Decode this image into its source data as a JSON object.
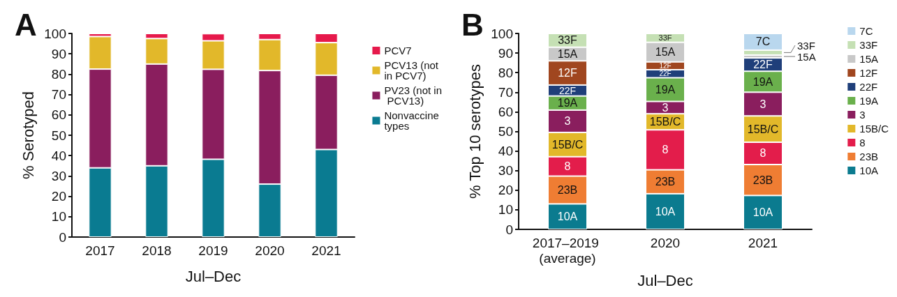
{
  "chart_data": [
    {
      "type": "bar",
      "title": "A",
      "stacked": true,
      "categories": [
        "2017",
        "2018",
        "2019",
        "2020",
        "2021"
      ],
      "xlabel": "Jul–Dec",
      "ylabel": "% Serotyped",
      "ylim": [
        0,
        100
      ],
      "yticks": [
        0,
        10,
        20,
        30,
        40,
        50,
        60,
        70,
        80,
        90,
        100
      ],
      "grid": false,
      "legend": "right",
      "series": [
        {
          "name": "Nonvaccine types",
          "color": "#0a7b91",
          "values": [
            34,
            35,
            38.2,
            26,
            43
          ]
        },
        {
          "name": "PV23 (not in PCV13)",
          "color": "#8a1e5e",
          "values": [
            48.5,
            50,
            44.2,
            55.8,
            36.5
          ]
        },
        {
          "name": "PCV13 (not in PCV7)",
          "color": "#e2b82a",
          "values": [
            16,
            12.5,
            14,
            15.2,
            16
          ]
        },
        {
          "name": "PCV7",
          "color": "#e6194b",
          "values": [
            1.5,
            2.5,
            3.5,
            3,
            4.5
          ]
        }
      ]
    },
    {
      "type": "bar",
      "title": "B",
      "stacked": true,
      "categories": [
        "2017–2019 (average)",
        "2020",
        "2021"
      ],
      "xlabel": "Jul–Dec",
      "ylabel": "% Top 10 serotypes",
      "ylim": [
        0,
        100
      ],
      "yticks": [
        0,
        10,
        20,
        30,
        40,
        50,
        60,
        70,
        80,
        90,
        100
      ],
      "grid": false,
      "legend": "right",
      "series": [
        {
          "name": "10A",
          "color": "#0b7b8f",
          "values": [
            13,
            18.2,
            17.3
          ]
        },
        {
          "name": "23B",
          "color": "#ef7d33",
          "values": [
            14.2,
            12.2,
            15.8
          ]
        },
        {
          "name": "8",
          "color": "#e31d4b",
          "values": [
            9.9,
            20.4,
            11.4
          ]
        },
        {
          "name": "15B/C",
          "color": "#e2b82a",
          "values": [
            12.4,
            8.2,
            13.4
          ]
        },
        {
          "name": "3",
          "color": "#8a1e5e",
          "values": [
            11.4,
            6.3,
            12.1
          ]
        },
        {
          "name": "19A",
          "color": "#6ab04c",
          "values": [
            7.2,
            12.1,
            10.7
          ]
        },
        {
          "name": "22F",
          "color": "#1f3f7a",
          "values": [
            5.6,
            4.1,
            6.8
          ]
        },
        {
          "name": "12F",
          "color": "#a0461f",
          "values": [
            12.3,
            4,
            null
          ]
        },
        {
          "name": "15A",
          "color": "#c8c8c8",
          "values": [
            7,
            10,
            1.5
          ]
        },
        {
          "name": "33F",
          "color": "#c5e0b4",
          "values": [
            7,
            4.5,
            2.5
          ]
        },
        {
          "name": "7C",
          "color": "#b9d7ee",
          "values": [
            null,
            null,
            8.5
          ]
        }
      ]
    }
  ]
}
